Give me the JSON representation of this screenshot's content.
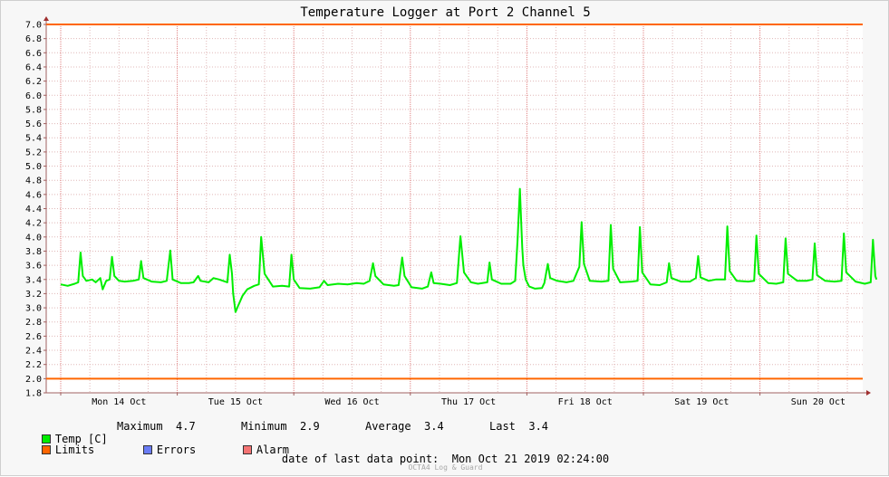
{
  "title": "Temperature Logger at Port 2 Channel 5",
  "colors": {
    "series": "#00ee00",
    "limits": "#ff6600",
    "errors": "#6a7cf5",
    "alarm": "#f47373",
    "grid": "#e0b8b8",
    "axis": "#a06060"
  },
  "legend": {
    "temp_label": "Temp [C]",
    "maximum_label": "Maximum",
    "maximum_value": "4.7",
    "minimum_label": "Minimum",
    "minimum_value": "2.9",
    "average_label": "Average",
    "average_value": "3.4",
    "last_label": "Last",
    "last_value": "3.4",
    "limits_label": "Limits",
    "errors_label": "Errors",
    "alarm_label": "Alarm"
  },
  "last_data_point": {
    "label": "date of last data point:",
    "value": "Mon Oct 21 2019 02:24:00"
  },
  "footer": "OCTA4 Log & Guard",
  "chart_data": {
    "type": "line",
    "title": "Temperature Logger at Port 2 Channel 5",
    "x_unit": "days from start of plotted window (first day tick = Mon 14 Oct)",
    "x_range_days": [
      0,
      7.1
    ],
    "ylim": [
      1.8,
      7.0
    ],
    "y_ticks": [
      "1.8",
      "2.0",
      "2.2",
      "2.4",
      "2.6",
      "2.8",
      "3.0",
      "3.2",
      "3.4",
      "3.6",
      "3.8",
      "4.0",
      "4.2",
      "4.4",
      "4.6",
      "4.8",
      "5.0",
      "5.2",
      "5.4",
      "5.6",
      "5.8",
      "6.0",
      "6.2",
      "6.4",
      "6.6",
      "6.8",
      "7.0"
    ],
    "x_ticks": [
      {
        "label": "Mon 14 Oct",
        "day": 0.5
      },
      {
        "label": "Tue 15 Oct",
        "day": 1.5
      },
      {
        "label": "Wed 16 Oct",
        "day": 2.5
      },
      {
        "label": "Thu 17 Oct",
        "day": 3.5
      },
      {
        "label": "Fri 18 Oct",
        "day": 4.5
      },
      {
        "label": "Sat 19 Oct",
        "day": 5.5
      },
      {
        "label": "Sun 20 Oct",
        "day": 6.5
      }
    ],
    "limits": [
      2.0,
      7.0
    ],
    "grid": true,
    "series": [
      {
        "name": "Temp [C]",
        "points": [
          [
            0.0,
            3.33
          ],
          [
            0.06,
            3.31
          ],
          [
            0.12,
            3.34
          ],
          [
            0.15,
            3.36
          ],
          [
            0.17,
            3.78
          ],
          [
            0.19,
            3.45
          ],
          [
            0.22,
            3.38
          ],
          [
            0.27,
            3.4
          ],
          [
            0.3,
            3.36
          ],
          [
            0.34,
            3.42
          ],
          [
            0.36,
            3.26
          ],
          [
            0.39,
            3.38
          ],
          [
            0.42,
            3.4
          ],
          [
            0.44,
            3.72
          ],
          [
            0.46,
            3.45
          ],
          [
            0.5,
            3.38
          ],
          [
            0.55,
            3.37
          ],
          [
            0.62,
            3.38
          ],
          [
            0.67,
            3.4
          ],
          [
            0.69,
            3.66
          ],
          [
            0.71,
            3.42
          ],
          [
            0.78,
            3.37
          ],
          [
            0.86,
            3.36
          ],
          [
            0.91,
            3.38
          ],
          [
            0.94,
            3.81
          ],
          [
            0.96,
            3.4
          ],
          [
            1.03,
            3.35
          ],
          [
            1.1,
            3.35
          ],
          [
            1.14,
            3.36
          ],
          [
            1.18,
            3.45
          ],
          [
            1.2,
            3.38
          ],
          [
            1.27,
            3.36
          ],
          [
            1.31,
            3.42
          ],
          [
            1.36,
            3.4
          ],
          [
            1.43,
            3.36
          ],
          [
            1.45,
            3.75
          ],
          [
            1.47,
            3.48
          ],
          [
            1.48,
            3.2
          ],
          [
            1.5,
            2.94
          ],
          [
            1.52,
            3.02
          ],
          [
            1.56,
            3.17
          ],
          [
            1.6,
            3.26
          ],
          [
            1.66,
            3.31
          ],
          [
            1.7,
            3.33
          ],
          [
            1.72,
            4.0
          ],
          [
            1.75,
            3.48
          ],
          [
            1.82,
            3.3
          ],
          [
            1.9,
            3.31
          ],
          [
            1.96,
            3.3
          ],
          [
            1.98,
            3.75
          ],
          [
            2.0,
            3.4
          ],
          [
            2.05,
            3.28
          ],
          [
            2.14,
            3.27
          ],
          [
            2.22,
            3.29
          ],
          [
            2.26,
            3.38
          ],
          [
            2.29,
            3.32
          ],
          [
            2.38,
            3.34
          ],
          [
            2.46,
            3.33
          ],
          [
            2.54,
            3.35
          ],
          [
            2.6,
            3.34
          ],
          [
            2.65,
            3.38
          ],
          [
            2.68,
            3.63
          ],
          [
            2.7,
            3.45
          ],
          [
            2.77,
            3.33
          ],
          [
            2.86,
            3.31
          ],
          [
            2.9,
            3.32
          ],
          [
            2.93,
            3.71
          ],
          [
            2.95,
            3.45
          ],
          [
            3.01,
            3.29
          ],
          [
            3.1,
            3.27
          ],
          [
            3.15,
            3.3
          ],
          [
            3.18,
            3.5
          ],
          [
            3.2,
            3.35
          ],
          [
            3.26,
            3.34
          ],
          [
            3.34,
            3.32
          ],
          [
            3.4,
            3.35
          ],
          [
            3.43,
            4.01
          ],
          [
            3.46,
            3.5
          ],
          [
            3.52,
            3.36
          ],
          [
            3.58,
            3.34
          ],
          [
            3.66,
            3.36
          ],
          [
            3.68,
            3.64
          ],
          [
            3.7,
            3.4
          ],
          [
            3.78,
            3.34
          ],
          [
            3.86,
            3.34
          ],
          [
            3.9,
            3.38
          ],
          [
            3.92,
            3.95
          ],
          [
            3.94,
            4.68
          ],
          [
            3.95,
            4.25
          ],
          [
            3.96,
            3.85
          ],
          [
            3.97,
            3.6
          ],
          [
            3.99,
            3.4
          ],
          [
            4.02,
            3.3
          ],
          [
            4.07,
            3.27
          ],
          [
            4.13,
            3.28
          ],
          [
            4.15,
            3.35
          ],
          [
            4.18,
            3.62
          ],
          [
            4.2,
            3.42
          ],
          [
            4.26,
            3.38
          ],
          [
            4.34,
            3.36
          ],
          [
            4.4,
            3.38
          ],
          [
            4.45,
            3.58
          ],
          [
            4.47,
            4.21
          ],
          [
            4.49,
            3.62
          ],
          [
            4.54,
            3.38
          ],
          [
            4.64,
            3.37
          ],
          [
            4.7,
            3.38
          ],
          [
            4.72,
            4.17
          ],
          [
            4.74,
            3.55
          ],
          [
            4.8,
            3.36
          ],
          [
            4.9,
            3.37
          ],
          [
            4.95,
            3.38
          ],
          [
            4.97,
            4.14
          ],
          [
            4.99,
            3.5
          ],
          [
            5.06,
            3.33
          ],
          [
            5.14,
            3.32
          ],
          [
            5.2,
            3.36
          ],
          [
            5.22,
            3.63
          ],
          [
            5.24,
            3.42
          ],
          [
            5.32,
            3.37
          ],
          [
            5.4,
            3.37
          ],
          [
            5.45,
            3.42
          ],
          [
            5.47,
            3.73
          ],
          [
            5.49,
            3.43
          ],
          [
            5.56,
            3.38
          ],
          [
            5.62,
            3.4
          ],
          [
            5.7,
            3.4
          ],
          [
            5.72,
            4.15
          ],
          [
            5.74,
            3.52
          ],
          [
            5.8,
            3.38
          ],
          [
            5.9,
            3.37
          ],
          [
            5.95,
            3.38
          ],
          [
            5.97,
            4.02
          ],
          [
            5.99,
            3.48
          ],
          [
            6.07,
            3.35
          ],
          [
            6.14,
            3.34
          ],
          [
            6.2,
            3.36
          ],
          [
            6.22,
            3.98
          ],
          [
            6.24,
            3.48
          ],
          [
            6.32,
            3.38
          ],
          [
            6.4,
            3.38
          ],
          [
            6.45,
            3.4
          ],
          [
            6.47,
            3.91
          ],
          [
            6.49,
            3.46
          ],
          [
            6.56,
            3.38
          ],
          [
            6.64,
            3.37
          ],
          [
            6.7,
            3.38
          ],
          [
            6.72,
            4.05
          ],
          [
            6.74,
            3.5
          ],
          [
            6.82,
            3.37
          ],
          [
            6.9,
            3.34
          ],
          [
            6.95,
            3.36
          ],
          [
            6.97,
            3.96
          ],
          [
            6.99,
            3.45
          ],
          [
            7.0,
            3.4
          ]
        ]
      }
    ]
  }
}
